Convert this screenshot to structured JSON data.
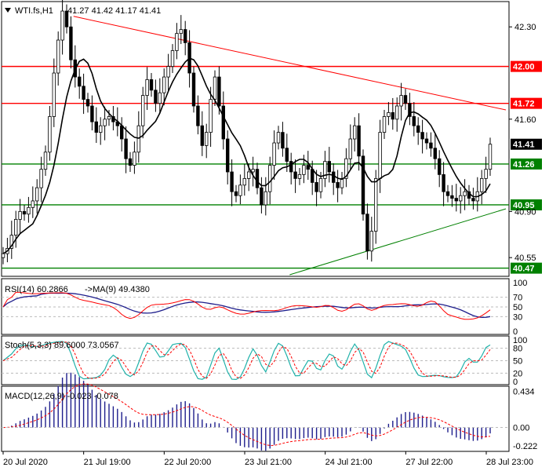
{
  "header": {
    "symbol": "WTI.fs,H1",
    "ohlc": "41.27 41.42 41.17 41.41"
  },
  "colors": {
    "bull": "#000000",
    "bear": "#000000",
    "resistance": "#ff0000",
    "support": "#008000",
    "ma": "#000000",
    "signal": "#ff0000",
    "macd_bars": "#1e1e8c",
    "price_tag": "#000000"
  },
  "chart_data": [
    {
      "type": "candlestick",
      "title": "WTI.fs,H1",
      "ylim": [
        40.42,
        42.48
      ],
      "y_ticks": [
        "42.30",
        "41.60",
        "40.90",
        "40.55"
      ],
      "x_tick_labels": [
        "20 Jul 2020",
        "21 Jul 19:00",
        "22 Jul 20:00",
        "23 Jul 21:00",
        "24 Jul 21:00",
        "27 Jul 22:00",
        "28 Jul 23:00"
      ],
      "horizontal_levels": [
        {
          "value": 42.0,
          "label": "42.00",
          "color": "#ff0000"
        },
        {
          "value": 41.72,
          "label": "41.72",
          "color": "#ff0000"
        },
        {
          "value": 41.26,
          "label": "41.26",
          "color": "#008000"
        },
        {
          "value": 40.95,
          "label": "40.95",
          "color": "#008000"
        },
        {
          "value": 40.47,
          "label": "40.47",
          "color": "#008000"
        }
      ],
      "current_price": {
        "value": 41.41,
        "label": "41.41"
      },
      "trendlines": [
        {
          "kind": "resistance",
          "from": [
            0.14,
            42.38
          ],
          "to": [
            1.0,
            41.67
          ],
          "color": "#ff0000"
        },
        {
          "kind": "support",
          "from": [
            0.57,
            40.42
          ],
          "to": [
            1.0,
            40.92
          ],
          "color": "#008000"
        }
      ],
      "close_path": [
        40.58,
        40.62,
        40.72,
        40.84,
        40.9,
        40.88,
        40.93,
        40.98,
        41.08,
        41.22,
        41.35,
        41.62,
        41.95,
        42.2,
        42.42,
        42.3,
        42.05,
        41.92,
        41.85,
        41.75,
        41.7,
        41.58,
        41.5,
        41.55,
        41.6,
        41.62,
        41.58,
        41.55,
        41.45,
        41.3,
        41.25,
        41.35,
        41.55,
        41.78,
        41.9,
        41.82,
        41.72,
        41.8,
        41.92,
        42.0,
        42.12,
        42.25,
        42.28,
        42.18,
        41.95,
        41.7,
        41.55,
        41.4,
        41.5,
        41.75,
        41.92,
        41.7,
        41.45,
        41.2,
        41.05,
        41.02,
        41.1,
        41.15,
        41.2,
        41.22,
        41.08,
        40.95,
        41.05,
        41.25,
        41.42,
        41.5,
        41.38,
        41.28,
        41.2,
        41.15,
        41.18,
        41.25,
        41.22,
        41.12,
        41.05,
        41.15,
        41.28,
        41.2,
        41.12,
        41.08,
        41.15,
        41.3,
        41.45,
        41.55,
        41.32,
        40.88,
        40.6,
        40.75,
        41.15,
        41.5,
        41.62,
        41.65,
        41.6,
        41.7,
        41.78,
        41.72,
        41.62,
        41.55,
        41.5,
        41.45,
        41.42,
        41.38,
        41.3,
        41.18,
        41.05,
        41.02,
        41.0,
        40.98,
        41.02,
        41.05,
        41.0,
        40.98,
        41.05,
        41.15,
        41.22,
        41.41
      ],
      "ma_period_note": "MA",
      "rsi": {
        "label": "RSI(14) 60.2866",
        "ma_label": "->MA(9) 49.4380",
        "ticks": [
          "100",
          "70",
          "50",
          "30",
          "0"
        ]
      },
      "stoch": {
        "label": "Stoch(5,3,3) 89.6000 73.0567",
        "ticks": [
          "100",
          "80",
          "50",
          "20",
          "0"
        ]
      },
      "macd": {
        "label": "MACD(12,26,9) -0.023 -0.078",
        "ticks": [
          "0.434",
          "0.00",
          "-0.222"
        ],
        "ylim": [
          -0.26,
          0.46
        ]
      }
    }
  ]
}
